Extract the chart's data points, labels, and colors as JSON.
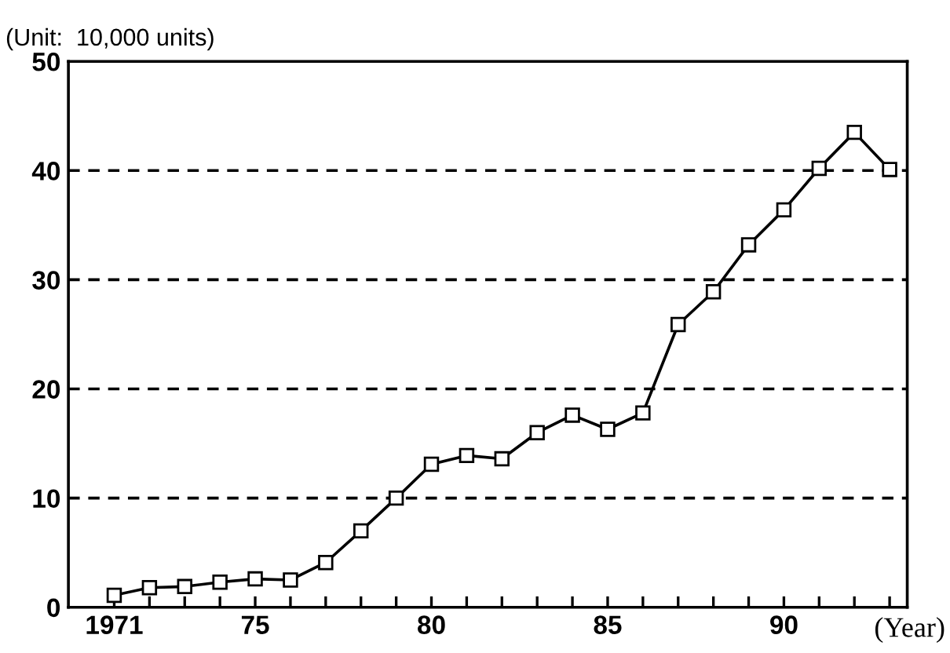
{
  "chart_data": {
    "type": "line",
    "ylabel": "(Unit:  10,000 units)",
    "xlabel": "(Year)",
    "x": [
      1971,
      1972,
      1973,
      1974,
      1975,
      1976,
      1977,
      1978,
      1979,
      1980,
      1981,
      1982,
      1983,
      1984,
      1985,
      1986,
      1987,
      1988,
      1989,
      1990,
      1991,
      1992,
      1993
    ],
    "series": [
      {
        "color": "#000000",
        "values": [
          1.1,
          1.8,
          1.9,
          2.3,
          2.6,
          2.5,
          4.1,
          7.0,
          10.0,
          13.1,
          13.9,
          13.6,
          16.0,
          17.6,
          16.3,
          17.8,
          25.9,
          28.9,
          33.2,
          36.4,
          40.2,
          43.5,
          40.1
        ]
      }
    ],
    "marker": "square",
    "line_style": "solid",
    "grid": "y",
    "xlim": [
      1969.7,
      1993.5
    ],
    "xticks": [
      1971,
      {
        "value": 1972,
        "label": null
      },
      {
        "value": 1973,
        "label": null
      },
      {
        "value": 1974,
        "label": null
      },
      {
        "value": 1975,
        "label": "75"
      },
      {
        "value": 1976,
        "label": null
      },
      {
        "value": 1977,
        "label": null
      },
      {
        "value": 1978,
        "label": null
      },
      {
        "value": 1979,
        "label": null
      },
      {
        "value": 1980,
        "label": "80"
      },
      {
        "value": 1981,
        "label": null
      },
      {
        "value": 1982,
        "label": null
      },
      {
        "value": 1983,
        "label": null
      },
      {
        "value": 1984,
        "label": null
      },
      {
        "value": 1985,
        "label": "85"
      },
      {
        "value": 1986,
        "label": null
      },
      {
        "value": 1987,
        "label": null
      },
      {
        "value": 1988,
        "label": null
      },
      {
        "value": 1989,
        "label": null
      },
      {
        "value": 1990,
        "label": "90"
      },
      {
        "value": 1991,
        "label": null
      },
      {
        "value": 1992,
        "label": null
      },
      {
        "value": 1993,
        "label": null
      }
    ],
    "ylim": [
      0,
      50
    ],
    "yticks": [
      0,
      10,
      20,
      30,
      40,
      50
    ]
  }
}
